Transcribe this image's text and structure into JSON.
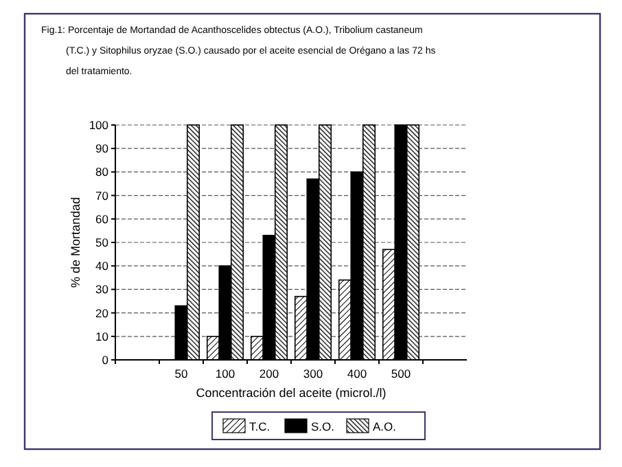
{
  "chart_data": {
    "type": "bar",
    "title": "Fig.1: Porcentaje de Mortandad de Acanthoscelides obtectus (A.O.), Tribolium castaneum (T.C.) y Sitophilus oryzae (S.O.) causado por el aceite esencial de Orégano a las 72 hs del tratamiento.",
    "xlabel": "Concentración del aceite (microl./l)",
    "ylabel": "% de Mortandad",
    "categories": [
      null,
      "50",
      "100",
      "200",
      "300",
      "400",
      "500",
      null
    ],
    "series": [
      {
        "name": "T.C.",
        "color": "#000000",
        "values": [
          null,
          0,
          10,
          10,
          27,
          34,
          47,
          null
        ]
      },
      {
        "name": "S.O.",
        "color": "#000000",
        "values": [
          null,
          23,
          40,
          53,
          77,
          80,
          100,
          null
        ]
      },
      {
        "name": "A.O.",
        "color": "#000000",
        "values": [
          null,
          100,
          100,
          100,
          100,
          100,
          100,
          null
        ]
      }
    ],
    "ylim": [
      0,
      100
    ],
    "yticks": [
      0,
      10,
      20,
      30,
      40,
      50,
      60,
      70,
      80,
      90,
      100
    ],
    "grid": "y",
    "legend": "bottom"
  }
}
